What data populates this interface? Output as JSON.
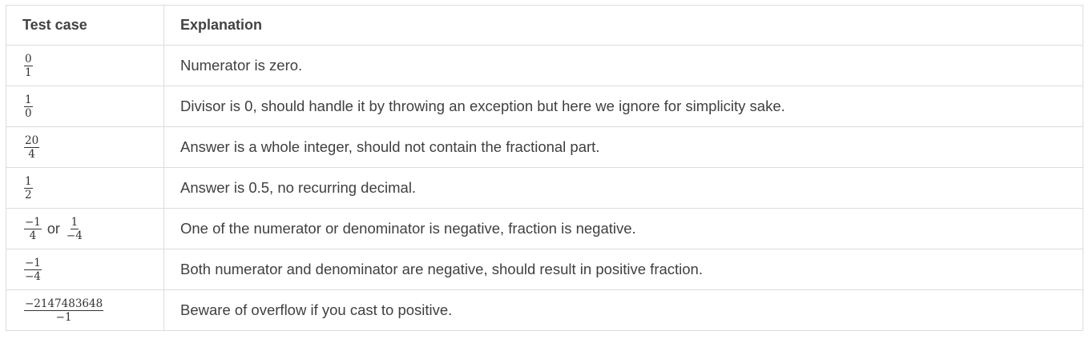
{
  "table": {
    "headers": {
      "test_case": "Test case",
      "explanation": "Explanation"
    },
    "rows": [
      {
        "fractions": [
          {
            "numerator": "0",
            "denominator": "1"
          }
        ],
        "connector": "",
        "explanation": "Numerator is zero."
      },
      {
        "fractions": [
          {
            "numerator": "1",
            "denominator": "0"
          }
        ],
        "connector": "",
        "explanation": "Divisor is 0, should handle it by throwing an exception but here we ignore for simplicity sake."
      },
      {
        "fractions": [
          {
            "numerator": "20",
            "denominator": "4"
          }
        ],
        "connector": "",
        "explanation": "Answer is a whole integer, should not contain the fractional part."
      },
      {
        "fractions": [
          {
            "numerator": "1",
            "denominator": "2"
          }
        ],
        "connector": "",
        "explanation": "Answer is 0.5, no recurring decimal."
      },
      {
        "fractions": [
          {
            "numerator": "−1",
            "denominator": "4"
          },
          {
            "numerator": "1",
            "denominator": "−4"
          }
        ],
        "connector": "or",
        "explanation": "One of the numerator or denominator is negative, fraction is negative."
      },
      {
        "fractions": [
          {
            "numerator": "−1",
            "denominator": "−4"
          }
        ],
        "connector": "",
        "explanation": "Both numerator and denominator are negative, should result in positive fraction."
      },
      {
        "fractions": [
          {
            "numerator": "−2147483648",
            "denominator": "−1"
          }
        ],
        "connector": "",
        "explanation": "Beware of overflow if you cast to positive."
      }
    ]
  }
}
